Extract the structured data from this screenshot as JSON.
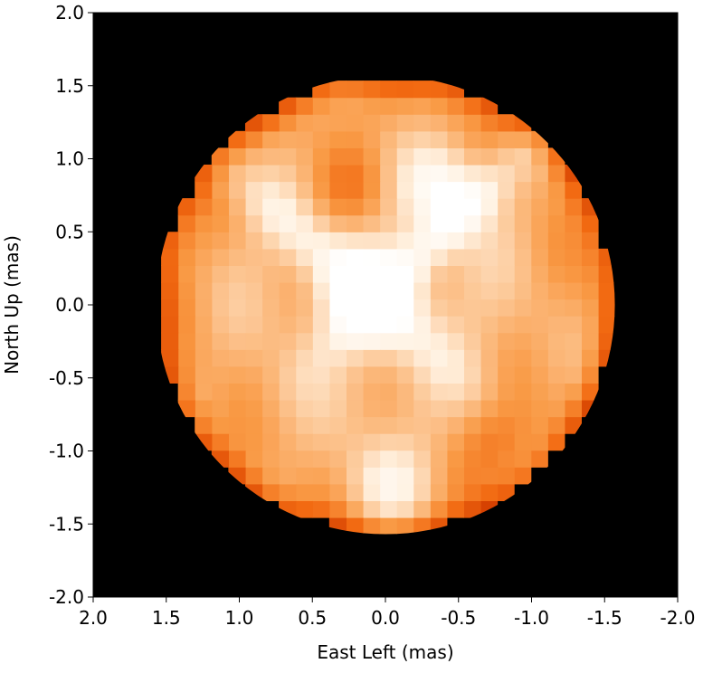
{
  "chart_data": {
    "type": "heatmap",
    "title": "",
    "xlabel": "East Left (mas)",
    "ylabel": "North Up (mas)",
    "xlim": [
      2.0,
      -2.0
    ],
    "ylim": [
      -2.0,
      2.0
    ],
    "x_ticks": [
      "2.0",
      "1.5",
      "1.0",
      "0.5",
      "0.0",
      "-0.5",
      "-1.0",
      "-1.5",
      "-2.0"
    ],
    "y_ticks": [
      "2.0",
      "1.5",
      "1.0",
      "0.5",
      "0.0",
      "-0.5",
      "-1.0",
      "-1.5",
      "-2.0"
    ],
    "background_color": "#000000",
    "colormap": [
      "#8b1a00",
      "#d43f00",
      "#f26a12",
      "#f99a45",
      "#fcc592",
      "#fff1e0",
      "#ffffff"
    ],
    "disk": {
      "center": [
        0.0,
        0.0
      ],
      "radius_mas": 1.57
    },
    "features": [
      {
        "name": "brightest-region",
        "center": [
          0.1,
          0.05
        ],
        "intensity": 1.0
      },
      {
        "name": "bright-arm-upper-right",
        "center": [
          -0.4,
          0.8
        ],
        "intensity": 0.9
      },
      {
        "name": "bright-patch-south",
        "center": [
          0.0,
          -1.25
        ],
        "intensity": 0.85
      },
      {
        "name": "dark-spot-north",
        "center": [
          0.25,
          0.8
        ],
        "intensity": 0.35
      },
      {
        "name": "dark-lane-southwest",
        "center": [
          -0.8,
          -0.9
        ],
        "intensity": 0.35
      }
    ],
    "grid": false
  }
}
